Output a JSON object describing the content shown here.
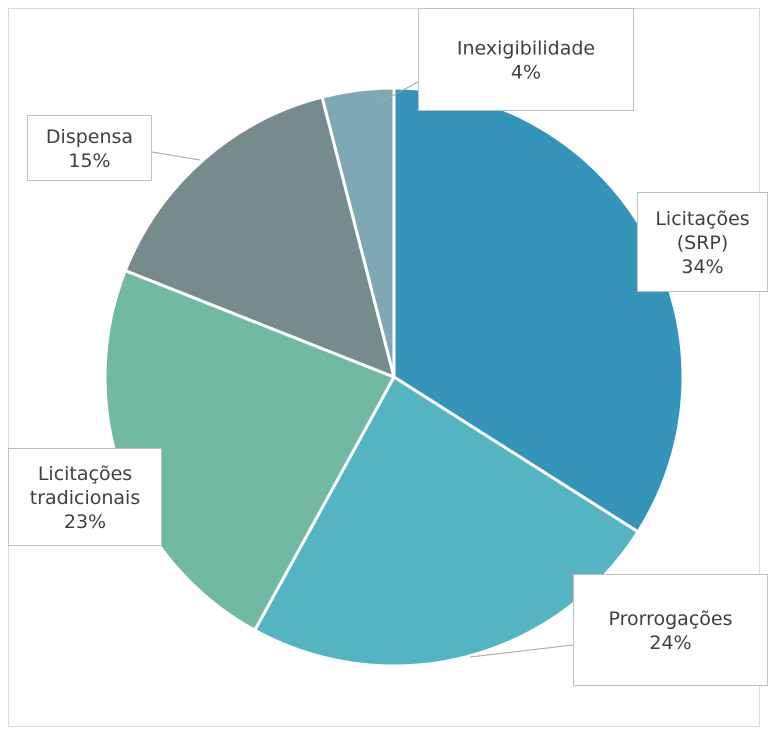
{
  "chart_data": {
    "type": "pie",
    "title": "",
    "slices": [
      {
        "label": "Licitações (SRP)",
        "value": 34,
        "display": [
          "Licitações",
          "(SRP)",
          "34%"
        ],
        "color": "#3594ba"
      },
      {
        "label": "Prorrogações",
        "value": 24,
        "display": [
          "Prorrogações",
          "24%"
        ],
        "color": "#55b4c1"
      },
      {
        "label": "Licitações tradicionais",
        "value": 23,
        "display": [
          "Licitações",
          "tradicionais",
          "23%"
        ],
        "color": "#72b9a4"
      },
      {
        "label": "Dispensa",
        "value": 15,
        "display": [
          "Dispensa",
          "15%"
        ],
        "color": "#768b8b"
      },
      {
        "label": "Inexigibilidade",
        "value": 4,
        "display": [
          "Inexigibilidade",
          "4%"
        ],
        "color": "#7fa8b5"
      }
    ]
  }
}
